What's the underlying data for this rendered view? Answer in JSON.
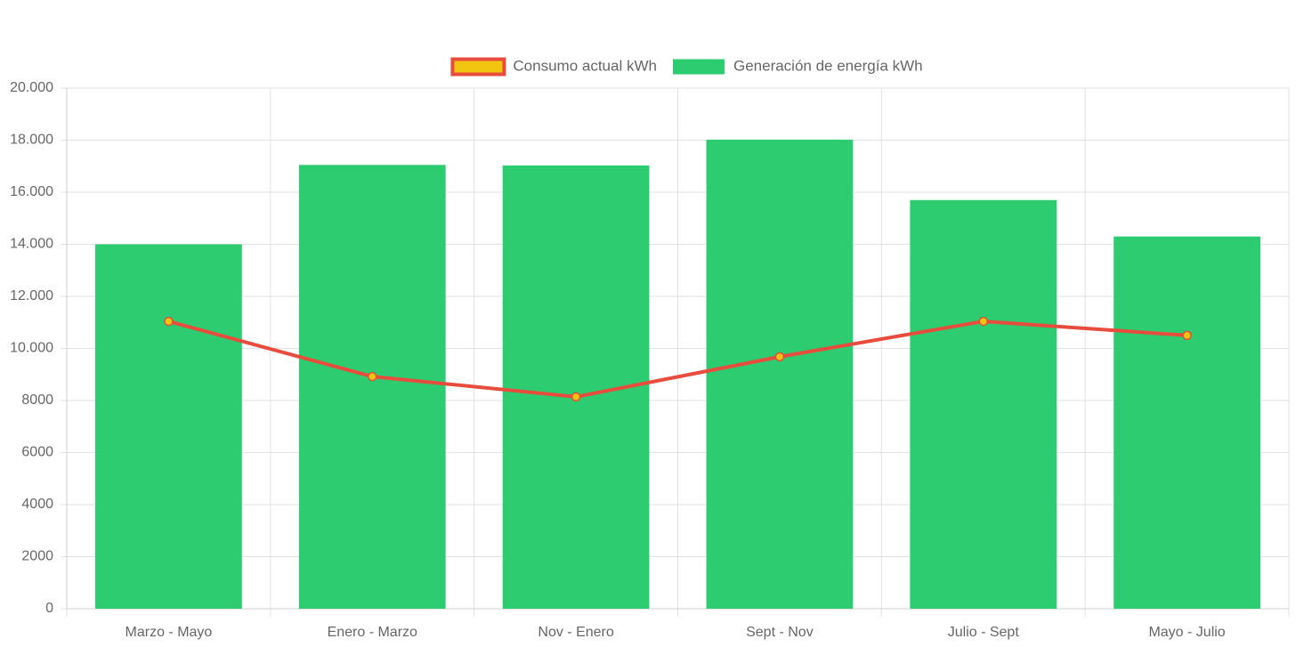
{
  "chart_data": {
    "type": "bar",
    "categories": [
      "Marzo - Mayo",
      "Enero - Marzo",
      "Nov - Enero",
      "Sept - Nov",
      "Julio - Sept",
      "Mayo - Julio"
    ],
    "series": [
      {
        "name": "Consumo actual kWh",
        "type": "line",
        "color": "#e74c3c",
        "point_color": "#f1c40f",
        "values": [
          11040,
          8920,
          8140,
          9680,
          11040,
          10500
        ]
      },
      {
        "name": "Generación de energía kWh",
        "type": "bar",
        "color": "#2ecc71",
        "values": [
          14000,
          17050,
          17030,
          18020,
          15700,
          14300
        ]
      }
    ],
    "ylim": [
      0,
      20000
    ],
    "yticks": [
      0,
      2000,
      4000,
      6000,
      8000,
      {
        "value": 10000,
        "label": "10.000"
      },
      {
        "value": 12000,
        "label": "12.000"
      },
      {
        "value": 14000,
        "label": "14.000"
      },
      {
        "value": 16000,
        "label": "16.000"
      },
      {
        "value": 18000,
        "label": "18.000"
      },
      {
        "value": 20000,
        "label": "20.000"
      }
    ],
    "grid": true,
    "legend": "top"
  }
}
